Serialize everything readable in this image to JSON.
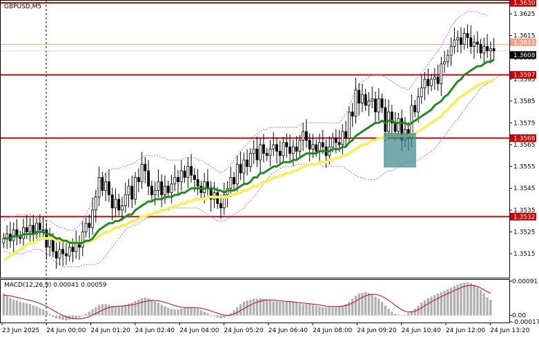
{
  "chart_data": [
    {
      "type": "candlestick",
      "title": "GBPUSD,M5",
      "ylim": [
        1.3504,
        1.3631
      ],
      "y_ticks": [
        1.3515,
        1.3525,
        1.3535,
        1.3545,
        1.3555,
        1.3565,
        1.3575,
        1.3585,
        1.3595,
        1.3605,
        1.3615,
        1.3625
      ],
      "y_tick_labels": [
        "1.3515",
        "1.3525",
        "1.3535",
        "1.3545",
        "1.3555",
        "1.3565",
        "1.3575",
        "1.3585",
        "1.3595",
        "1.3605",
        "1.3615",
        "1.3625"
      ],
      "x_labels": [
        "23 Jun 2025",
        "24 Jun 00:00",
        "24 Jun 01:20",
        "24 Jun 02:40",
        "24 Jun 04:00",
        "24 Jun 05:20",
        "24 Jun 06:40",
        "24 Jun 08:00",
        "24 Jun 09:20",
        "24 Jun 10:40",
        "24 Jun 12:00",
        "24 Jun 13:20"
      ],
      "levels": [
        {
          "value": 1.363,
          "label": "1.3630",
          "color": "#cc0000"
        },
        {
          "value": 1.3597,
          "label": "1.3597",
          "color": "#cc0000"
        },
        {
          "value": 1.3568,
          "label": "1.3568",
          "color": "#cc0000"
        },
        {
          "value": 1.3532,
          "label": "1.3532",
          "color": "#cc0000"
        }
      ],
      "price_markers": [
        {
          "value": 1.3611,
          "label": "1.3611",
          "color": "#f4a080"
        },
        {
          "value": 1.3608,
          "label": "1.3608",
          "color": "#000000"
        }
      ],
      "close": [
        1.3522,
        1.3524,
        1.3521,
        1.3526,
        1.3523,
        1.3522,
        1.3527,
        1.3525,
        1.3528,
        1.3524,
        1.3529,
        1.3526,
        1.3526,
        1.3518,
        1.3522,
        1.3516,
        1.3513,
        1.3517,
        1.3515,
        1.3514,
        1.3518,
        1.3516,
        1.352,
        1.3518,
        1.3525,
        1.3529,
        1.3527,
        1.3535,
        1.3541,
        1.355,
        1.3544,
        1.3548,
        1.3542,
        1.3536,
        1.354,
        1.3535,
        1.3537,
        1.3542,
        1.3546,
        1.354,
        1.355,
        1.3548,
        1.3556,
        1.3553,
        1.3546,
        1.3542,
        1.3544,
        1.3548,
        1.3542,
        1.3546,
        1.3543,
        1.3547,
        1.355,
        1.3548,
        1.3553,
        1.355,
        1.3555,
        1.3551,
        1.3549,
        1.3546,
        1.3543,
        1.3548,
        1.3545,
        1.354,
        1.3543,
        1.3538,
        1.3536,
        1.3542,
        1.3545,
        1.355,
        1.3547,
        1.3556,
        1.3552,
        1.3558,
        1.3555,
        1.3561,
        1.3563,
        1.3558,
        1.3565,
        1.3561,
        1.356,
        1.3563,
        1.3565,
        1.3562,
        1.356,
        1.3566,
        1.3564,
        1.3561,
        1.3564,
        1.3562,
        1.3567,
        1.3571,
        1.3567,
        1.3563,
        1.3565,
        1.3562,
        1.3566,
        1.3564,
        1.356,
        1.3564,
        1.3568,
        1.3566,
        1.3565,
        1.3571,
        1.3568,
        1.358,
        1.3578,
        1.359,
        1.3584,
        1.3588,
        1.3583,
        1.3585,
        1.3586,
        1.358,
        1.3586,
        1.3582,
        1.3571,
        1.358,
        1.3575,
        1.3571,
        1.3577,
        1.3567,
        1.3572,
        1.3568,
        1.3583,
        1.358,
        1.3587,
        1.3591,
        1.3595,
        1.3592,
        1.3595,
        1.3596,
        1.3593,
        1.3602,
        1.3603,
        1.3606,
        1.361,
        1.3613,
        1.3614,
        1.3611,
        1.3616,
        1.3614,
        1.361,
        1.3612,
        1.3611,
        1.3607,
        1.361,
        1.3608,
        1.3609,
        1.3608
      ],
      "ma_green": [
        1.3522,
        1.3522,
        1.3522,
        1.3523,
        1.3523,
        1.3523,
        1.3524,
        1.3524,
        1.3524,
        1.3524,
        1.3525,
        1.3525,
        1.3525,
        1.3524,
        1.3524,
        1.3523,
        1.3522,
        1.3522,
        1.3521,
        1.3521,
        1.352,
        1.352,
        1.352,
        1.352,
        1.352,
        1.3521,
        1.3521,
        1.3522,
        1.3524,
        1.3526,
        1.3527,
        1.3528,
        1.3529,
        1.3529,
        1.353,
        1.353,
        1.3531,
        1.3532,
        1.3533,
        1.3533,
        1.3535,
        1.3536,
        1.3537,
        1.3538,
        1.3539,
        1.3539,
        1.354,
        1.354,
        1.354,
        1.3541,
        1.3541,
        1.3541,
        1.3542,
        1.3542,
        1.3543,
        1.3543,
        1.3544,
        1.3545,
        1.3545,
        1.3545,
        1.3545,
        1.3545,
        1.3545,
        1.3545,
        1.3545,
        1.3544,
        1.3544,
        1.3543,
        1.3544,
        1.3544,
        1.3544,
        1.3545,
        1.3546,
        1.3547,
        1.3547,
        1.3548,
        1.355,
        1.355,
        1.3552,
        1.3552,
        1.3553,
        1.3554,
        1.3555,
        1.3555,
        1.3556,
        1.3557,
        1.3557,
        1.3557,
        1.3558,
        1.3558,
        1.3559,
        1.356,
        1.3561,
        1.3561,
        1.3561,
        1.3561,
        1.3562,
        1.3562,
        1.3562,
        1.3562,
        1.3563,
        1.3563,
        1.3563,
        1.3564,
        1.3564,
        1.3566,
        1.3567,
        1.3569,
        1.357,
        1.3571,
        1.3572,
        1.3573,
        1.3574,
        1.3575,
        1.3575,
        1.3576,
        1.3575,
        1.3576,
        1.3576,
        1.3575,
        1.3575,
        1.3575,
        1.3575,
        1.3574,
        1.3575,
        1.3576,
        1.3577,
        1.3578,
        1.3579,
        1.358,
        1.3581,
        1.3583,
        1.3584,
        1.3585,
        1.3587,
        1.3588,
        1.359,
        1.3592,
        1.3594,
        1.3595,
        1.3597,
        1.3598,
        1.3599,
        1.36,
        1.3601,
        1.3601,
        1.3602,
        1.3603,
        1.3603,
        1.3604
      ],
      "ma_yellow": [
        1.3512,
        1.3513,
        1.3514,
        1.3515,
        1.3516,
        1.3517,
        1.3518,
        1.3519,
        1.352,
        1.352,
        1.3521,
        1.3522,
        1.3522,
        1.3522,
        1.3522,
        1.3522,
        1.3521,
        1.3521,
        1.3521,
        1.3521,
        1.3521,
        1.352,
        1.352,
        1.352,
        1.352,
        1.352,
        1.3521,
        1.3521,
        1.3522,
        1.3523,
        1.3524,
        1.3525,
        1.3525,
        1.3526,
        1.3527,
        1.3527,
        1.3528,
        1.3528,
        1.3529,
        1.353,
        1.353,
        1.3531,
        1.3532,
        1.3532,
        1.3533,
        1.3533,
        1.3534,
        1.3534,
        1.3535,
        1.3535,
        1.3536,
        1.3536,
        1.3537,
        1.3537,
        1.3538,
        1.3538,
        1.3539,
        1.3539,
        1.354,
        1.354,
        1.354,
        1.354,
        1.3541,
        1.3541,
        1.3541,
        1.3541,
        1.3541,
        1.3541,
        1.3541,
        1.3542,
        1.3542,
        1.3543,
        1.3543,
        1.3544,
        1.3544,
        1.3545,
        1.3546,
        1.3546,
        1.3547,
        1.3548,
        1.3548,
        1.3549,
        1.355,
        1.355,
        1.3551,
        1.3551,
        1.3552,
        1.3552,
        1.3553,
        1.3553,
        1.3554,
        1.3555,
        1.3555,
        1.3556,
        1.3556,
        1.3556,
        1.3557,
        1.3557,
        1.3557,
        1.3558,
        1.3558,
        1.3559,
        1.3559,
        1.356,
        1.356,
        1.3561,
        1.3562,
        1.3563,
        1.3564,
        1.3565,
        1.3565,
        1.3566,
        1.3567,
        1.3567,
        1.3568,
        1.3568,
        1.3568,
        1.3569,
        1.3569,
        1.3569,
        1.3569,
        1.3569,
        1.3569,
        1.3569,
        1.357,
        1.357,
        1.3571,
        1.3572,
        1.3573,
        1.3574,
        1.3575,
        1.3576,
        1.3577,
        1.3578,
        1.358,
        1.3581,
        1.3583,
        1.3584,
        1.3586,
        1.3587,
        1.3588,
        1.3589,
        1.359,
        1.3591,
        1.3592,
        1.3593,
        1.3593,
        1.3594,
        1.3594,
        1.3595
      ],
      "bollinger_upper": [
        1.353,
        1.3531,
        1.3532,
        1.3532,
        1.3533,
        1.3533,
        1.3533,
        1.3533,
        1.3533,
        1.3532,
        1.3532,
        1.3531,
        1.3531,
        1.353,
        1.353,
        1.3529,
        1.3528,
        1.3527,
        1.3527,
        1.3526,
        1.3526,
        1.3526,
        1.3527,
        1.3528,
        1.353,
        1.3533,
        1.3536,
        1.3539,
        1.3543,
        1.3547,
        1.355,
        1.3552,
        1.3553,
        1.3554,
        1.3554,
        1.3554,
        1.3555,
        1.3555,
        1.3556,
        1.3556,
        1.3557,
        1.3558,
        1.3559,
        1.356,
        1.356,
        1.356,
        1.356,
        1.356,
        1.3559,
        1.3559,
        1.3558,
        1.3558,
        1.3558,
        1.3558,
        1.3558,
        1.3559,
        1.3559,
        1.3559,
        1.3559,
        1.3558,
        1.3558,
        1.3557,
        1.3556,
        1.3555,
        1.3554,
        1.3553,
        1.3552,
        1.3553,
        1.3554,
        1.3556,
        1.3558,
        1.356,
        1.3562,
        1.3564,
        1.3565,
        1.3567,
        1.3569,
        1.357,
        1.3571,
        1.3572,
        1.3572,
        1.3573,
        1.3573,
        1.3573,
        1.3573,
        1.3573,
        1.3573,
        1.3573,
        1.3573,
        1.3573,
        1.3574,
        1.3575,
        1.3575,
        1.3575,
        1.3575,
        1.3575,
        1.3575,
        1.3575,
        1.3575,
        1.3575,
        1.3575,
        1.3575,
        1.3575,
        1.3577,
        1.3579,
        1.3583,
        1.3586,
        1.359,
        1.3592,
        1.3594,
        1.3595,
        1.3596,
        1.3597,
        1.3597,
        1.3597,
        1.3597,
        1.3596,
        1.3595,
        1.3594,
        1.3593,
        1.3592,
        1.3591,
        1.3591,
        1.359,
        1.3592,
        1.3594,
        1.3596,
        1.3598,
        1.36,
        1.3602,
        1.3604,
        1.3606,
        1.3608,
        1.361,
        1.3613,
        1.3616,
        1.3619,
        1.3621,
        1.3623,
        1.3624,
        1.3625,
        1.3626,
        1.3626,
        1.3626,
        1.3626,
        1.3625,
        1.3625,
        1.3624
      ],
      "bollinger_lower": [
        1.3516,
        1.3516,
        1.3515,
        1.3515,
        1.3515,
        1.3515,
        1.3515,
        1.3516,
        1.3516,
        1.3517,
        1.3517,
        1.3517,
        1.3516,
        1.3515,
        1.3514,
        1.3512,
        1.3511,
        1.351,
        1.3509,
        1.3509,
        1.3509,
        1.3509,
        1.3509,
        1.3509,
        1.351,
        1.351,
        1.351,
        1.351,
        1.351,
        1.3511,
        1.3512,
        1.3514,
        1.3516,
        1.3518,
        1.352,
        1.3522,
        1.3524,
        1.3526,
        1.3527,
        1.3528,
        1.3528,
        1.3529,
        1.353,
        1.3531,
        1.3532,
        1.3533,
        1.3534,
        1.3534,
        1.3535,
        1.3535,
        1.3535,
        1.3536,
        1.3536,
        1.3536,
        1.3536,
        1.3536,
        1.3536,
        1.3536,
        1.3536,
        1.3536,
        1.3535,
        1.3534,
        1.3533,
        1.3532,
        1.3531,
        1.353,
        1.353,
        1.353,
        1.3531,
        1.3532,
        1.3533,
        1.3534,
        1.3535,
        1.3536,
        1.3538,
        1.3539,
        1.3541,
        1.3543,
        1.3545,
        1.3547,
        1.3549,
        1.3551,
        1.3552,
        1.3553,
        1.3554,
        1.3555,
        1.3555,
        1.3555,
        1.3555,
        1.3556,
        1.3556,
        1.3556,
        1.3556,
        1.3556,
        1.3556,
        1.3556,
        1.3556,
        1.3555,
        1.3555,
        1.3555,
        1.3555,
        1.3555,
        1.3555,
        1.3555,
        1.3554,
        1.3553,
        1.3552,
        1.3551,
        1.355,
        1.355,
        1.3549,
        1.3549,
        1.3549,
        1.3549,
        1.355,
        1.3551,
        1.3552,
        1.3553,
        1.3553,
        1.3554,
        1.3555,
        1.3556,
        1.3557,
        1.3557,
        1.3557,
        1.3558,
        1.3558,
        1.3559,
        1.356,
        1.3561,
        1.3562,
        1.3563,
        1.3565,
        1.3567,
        1.3569,
        1.3571,
        1.3573,
        1.3575,
        1.3577,
        1.3579,
        1.3581,
        1.3583,
        1.3585,
        1.3587,
        1.3589,
        1.3591,
        1.3592,
        1.3593,
        1.3594,
        1.3595,
        1.3596,
        1.3597
      ]
    },
    {
      "type": "bar",
      "title": "MACD(12,26,9) 0.00041 0.00059",
      "ylim": [
        -0.00017,
        0.00091
      ],
      "y_ticks": [
        0.00091,
        0.0,
        -0.00017
      ],
      "y_tick_labels": [
        "0.00091",
        "0.00",
        "-0.00017"
      ],
      "signal_color": "#cc0000",
      "histogram_color": "#b0b0b0",
      "histogram": [
        0.00058,
        0.00052,
        0.00046,
        0.00042,
        0.0004,
        0.00036,
        0.00034,
        0.00032,
        0.0003,
        0.00026,
        0.00024,
        0.0002,
        0.00016,
        0.0001,
        4e-05,
        -4e-05,
        -8e-05,
        -0.0001,
        -0.00012,
        -0.00013,
        -0.00012,
        -0.0001,
        -8e-05,
        -6e-05,
        -2e-05,
        4e-05,
        0.0001,
        0.00016,
        0.00022,
        0.00028,
        0.0003,
        0.0003,
        0.00028,
        0.00026,
        0.00024,
        0.00024,
        0.00026,
        0.00028,
        0.00032,
        0.00034,
        0.00038,
        0.00042,
        0.00046,
        0.00048,
        0.00046,
        0.00042,
        0.00038,
        0.00034,
        0.00028,
        0.00024,
        0.0002,
        0.00018,
        0.00016,
        0.00016,
        0.00018,
        0.0002,
        0.00022,
        0.00022,
        0.0002,
        0.00018,
        0.00014,
        0.0001,
        6e-05,
        2e-05,
        -2e-05,
        -6e-05,
        -8e-05,
        -6e-05,
        -2e-05,
        6e-05,
        0.00014,
        0.00022,
        0.0003,
        0.00036,
        0.0004,
        0.00042,
        0.00044,
        0.00044,
        0.00046,
        0.00044,
        0.00042,
        0.0004,
        0.00038,
        0.00038,
        0.00036,
        0.00036,
        0.00036,
        0.00036,
        0.00036,
        0.00034,
        0.00032,
        0.0003,
        0.0003,
        0.0003,
        0.00028,
        0.00026,
        0.00024,
        0.00022,
        0.00022,
        0.00022,
        0.00022,
        0.00022,
        0.00024,
        0.00026,
        0.0003,
        0.00036,
        0.00044,
        0.00052,
        0.00058,
        0.0006,
        0.00062,
        0.0006,
        0.00056,
        0.0005,
        0.00044,
        0.00036,
        0.00026,
        0.00018,
        0.0001,
        4e-05,
        2e-05,
        0.0,
        2e-05,
        6e-05,
        0.00012,
        0.00018,
        0.00026,
        0.00034,
        0.0004,
        0.00046,
        0.0005,
        0.00054,
        0.00058,
        0.00062,
        0.00066,
        0.0007,
        0.00074,
        0.00078,
        0.00082,
        0.00085,
        0.00087,
        0.00088,
        0.00086,
        0.00082,
        0.00076,
        0.00068,
        0.00058,
        0.00048,
        0.00041
      ],
      "signal": [
        0.00054,
        0.00053,
        0.00052,
        0.0005,
        0.00048,
        0.00046,
        0.00044,
        0.00042,
        0.0004,
        0.00038,
        0.00035,
        0.00032,
        0.00028,
        0.00024,
        0.00019,
        0.00014,
        9e-05,
        4e-05,
        0.0,
        -4e-05,
        -6e-05,
        -8e-05,
        -9e-05,
        -9e-05,
        -8e-05,
        -6e-05,
        -3e-05,
        1e-05,
        5e-05,
        0.0001,
        0.00014,
        0.00018,
        0.00021,
        0.00023,
        0.00024,
        0.00025,
        0.00025,
        0.00026,
        0.00027,
        0.00028,
        0.0003,
        0.00032,
        0.00035,
        0.00037,
        0.00039,
        0.0004,
        0.0004,
        0.00039,
        0.00037,
        0.00035,
        0.00032,
        0.00029,
        0.00026,
        0.00024,
        0.00022,
        0.00021,
        0.00021,
        0.00021,
        0.00021,
        0.0002,
        0.00019,
        0.00017,
        0.00015,
        0.00012,
        9e-05,
        6e-05,
        3e-05,
        1e-05,
        0.0,
        1e-05,
        4e-05,
        8e-05,
        0.00013,
        0.00018,
        0.00023,
        0.00028,
        0.00032,
        0.00035,
        0.00038,
        0.0004,
        0.00041,
        0.00041,
        0.00041,
        0.0004,
        0.00039,
        0.00038,
        0.00037,
        0.00037,
        0.00036,
        0.00035,
        0.00034,
        0.00033,
        0.00032,
        0.00031,
        0.0003,
        0.00029,
        0.00028,
        0.00026,
        0.00025,
        0.00024,
        0.00024,
        0.00024,
        0.00024,
        0.00025,
        0.00026,
        0.00029,
        0.00033,
        0.00038,
        0.00043,
        0.00048,
        0.00052,
        0.00055,
        0.00056,
        0.00056,
        0.00054,
        0.00051,
        0.00046,
        0.0004,
        0.00034,
        0.00027,
        0.00021,
        0.00015,
        0.00011,
        9e-05,
        9e-05,
        0.00011,
        0.00015,
        0.0002,
        0.00026,
        0.00031,
        0.00036,
        0.00041,
        0.00045,
        0.0005,
        0.00054,
        0.00058,
        0.00062,
        0.00066,
        0.0007,
        0.00074,
        0.00077,
        0.00079,
        0.0008,
        0.00079,
        0.00077,
        0.00073,
        0.00068,
        0.00063,
        0.00059
      ]
    }
  ]
}
